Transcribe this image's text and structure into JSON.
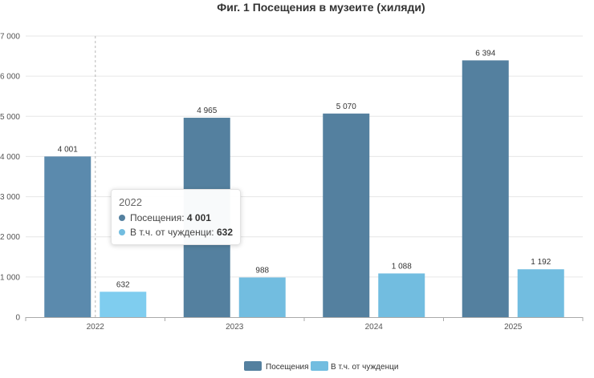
{
  "chart_data": {
    "type": "bar",
    "title": "Фиг. 1 Посещения в музеите (хиляди)",
    "categories": [
      "2022",
      "2023",
      "2024",
      "2025"
    ],
    "series": [
      {
        "name": "Посещения",
        "values": [
          4001,
          4965,
          5070,
          6394
        ],
        "labels": [
          "4 001",
          "4 965",
          "5 070",
          "6 394"
        ],
        "color": "#5b8aad",
        "highlight_color": "#54809f"
      },
      {
        "name": "В т.ч. от чужденци",
        "values": [
          632,
          988,
          1088,
          1192
        ],
        "labels": [
          "632",
          "988",
          "1 088",
          "1 192"
        ],
        "color": "#7fcdef",
        "highlight_color": "#72bde0"
      }
    ],
    "ylim": [
      0,
      7000
    ],
    "yticks": [
      0,
      1000,
      2000,
      3000,
      4000,
      5000,
      6000,
      7000
    ],
    "ytick_labels": [
      "0",
      "1 000",
      "2 000",
      "3 000",
      "4 000",
      "5 000",
      "6 000",
      "7 000"
    ],
    "grid": true,
    "legend": "bottom-center",
    "hovered_category": "2022"
  },
  "tooltip": {
    "title": "2022",
    "row1_label": "Посещения:",
    "row1_value": "4 001",
    "row2_label": "В т.ч. от чужденци:",
    "row2_value": "632"
  }
}
